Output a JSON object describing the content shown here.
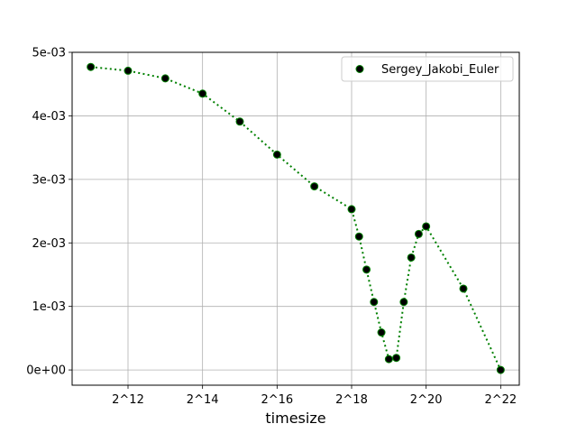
{
  "chart_data": {
    "type": "line",
    "title": "",
    "xlabel": "timesize",
    "ylabel": "",
    "x_scale": "log2",
    "xlim": [
      10.5,
      22.5
    ],
    "ylim": [
      -0.00024,
      0.005
    ],
    "grid": true,
    "legend_position": "upper right",
    "x_ticks": [
      12,
      14,
      16,
      18,
      20,
      22
    ],
    "x_tick_labels": [
      "2^12",
      "2^14",
      "2^16",
      "2^18",
      "2^20",
      "2^22"
    ],
    "y_ticks": [
      0,
      0.001,
      0.002,
      0.003,
      0.004,
      0.005
    ],
    "y_tick_labels": [
      "0e+00",
      "1e-03",
      "2e-03",
      "3e-03",
      "4e-03",
      "5e-03"
    ],
    "series": [
      {
        "name": "Sergey_Jakobi_Euler",
        "line_color": "#008000",
        "line_style": "dotted",
        "marker_color": "#000000",
        "x": [
          11,
          12,
          13,
          14,
          15,
          16,
          17,
          18,
          18.2,
          18.4,
          18.6,
          18.8,
          19,
          19.2,
          19.4,
          19.6,
          19.8,
          20,
          21,
          22
        ],
        "values": [
          0.00477,
          0.00471,
          0.00459,
          0.00435,
          0.00391,
          0.00339,
          0.00289,
          0.00253,
          0.0021,
          0.00158,
          0.00107,
          0.00059,
          0.00017,
          0.00019,
          0.00107,
          0.00177,
          0.00214,
          0.00226,
          0.00128,
          0.0
        ]
      }
    ]
  }
}
